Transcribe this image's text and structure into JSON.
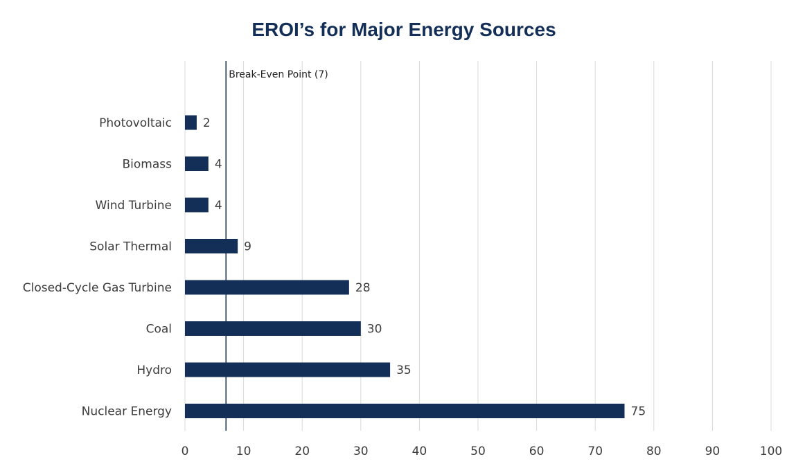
{
  "chart_data": {
    "type": "bar",
    "orientation": "horizontal",
    "title": "EROI’s for Major Energy Sources",
    "categories": [
      "Photovoltaic",
      "Biomass",
      "Wind Turbine",
      "Solar Thermal",
      "Closed-Cycle Gas Turbine",
      "Coal",
      "Hydro",
      "Nuclear Energy"
    ],
    "values": [
      2,
      4,
      4,
      9,
      28,
      30,
      35,
      75
    ],
    "data_labels": [
      "2",
      "4",
      "4",
      "9",
      "28",
      "30",
      "35",
      "75"
    ],
    "xlim": [
      0,
      100
    ],
    "xticks": [
      0,
      10,
      20,
      30,
      40,
      50,
      60,
      70,
      80,
      90,
      100
    ],
    "xtick_labels": [
      "0",
      "10",
      "20",
      "30",
      "40",
      "50",
      "60",
      "70",
      "80",
      "90",
      "100"
    ],
    "xlabel": "",
    "ylabel": "",
    "grid": true,
    "legend": "none",
    "reference_line": {
      "value": 7,
      "label": "Break-Even Point (7)"
    },
    "colors": {
      "bar": "#142f57",
      "reference_line": "#142f57",
      "title": "#142f57",
      "grid": "#d9d9d9"
    }
  }
}
